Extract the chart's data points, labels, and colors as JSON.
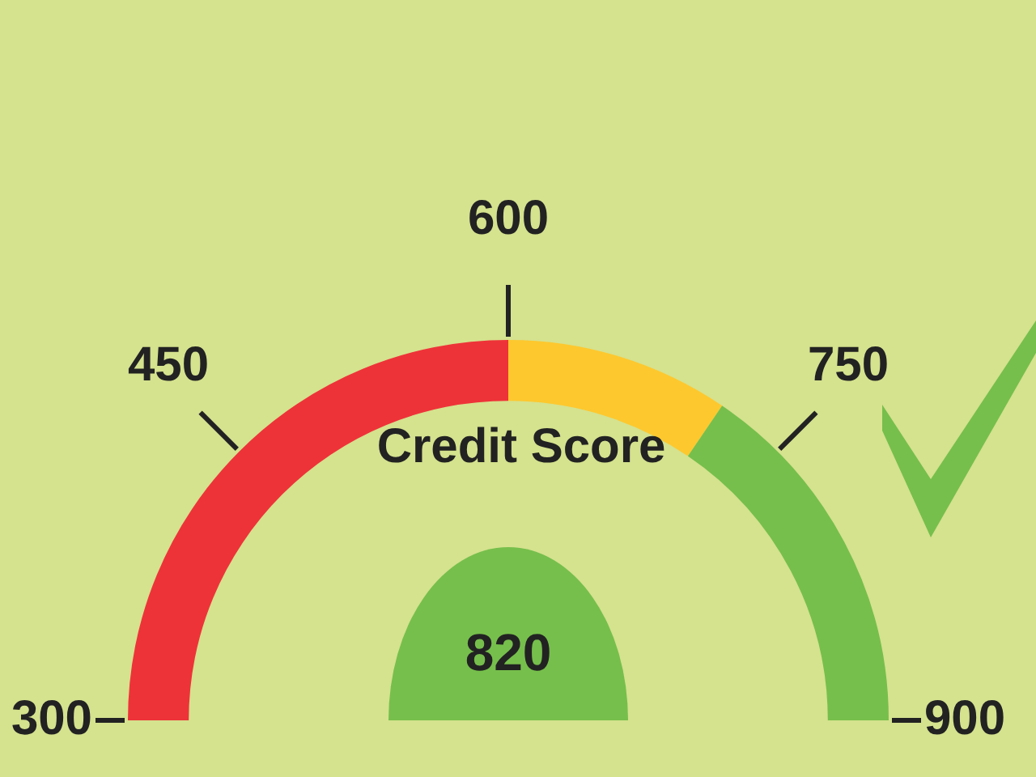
{
  "chart_data": {
    "type": "donut",
    "title": "Credit Score",
    "categories": [
      null,
      null,
      null
    ],
    "values": [
      50,
      19,
      31
    ],
    "colors": [
      "#ee3338",
      "#fdc82e",
      "#76bf4c"
    ],
    "annotations": [
      "820",
      "300",
      "450",
      "600",
      "750",
      "900"
    ],
    "legend": false
  }
}
